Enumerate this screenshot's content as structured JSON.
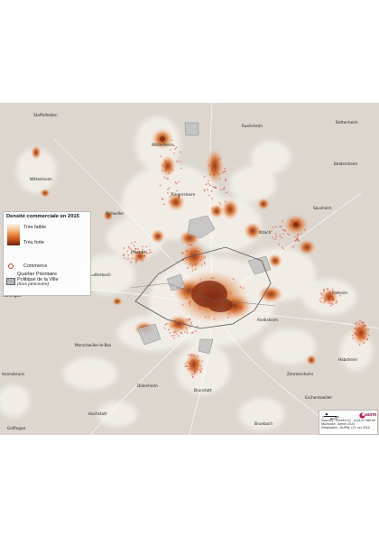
{
  "legend": {
    "title": "Densité commerciale en 2015",
    "low": "Très faible",
    "high": "Très forte",
    "commerce": "Commerce",
    "qpv": "Quartier Prioritaire\nPolitique de la Ville",
    "qpv_note": "(hors péricentre)"
  },
  "places": [
    "Staffelfelden",
    "Wittenheim",
    "Ruelisheim",
    "Battenheim",
    "Baldersheim",
    "Wittelsheim",
    "Kingersheim",
    "Richwiller",
    "Sausheim",
    "Illzach",
    "Pfastatt",
    "Lutterbach",
    "Reiningue",
    "Mulhouse",
    "Rixheim",
    "Riedisheim",
    "Morschwiller-le-Bas",
    "Habsheim",
    "Heimsbrunn",
    "Didenheim",
    "Zimmersheim",
    "Brunstatt",
    "Eschentzwiller",
    "Hochstatt",
    "Bruebach",
    "Galfingue"
  ],
  "credits": {
    "scale_zero": "0",
    "scale_max": "900",
    "scale_unit": "Mètres",
    "logo": "aurm",
    "sources": "Sources : Service IG - m2A et Ville de Mulhouse, Sirene 2015",
    "realisation": "Réalisation : AURM, LH, oct 2016"
  },
  "colors": {
    "background": "#dcd6cf",
    "hot": "#c95a1f",
    "core": "#7a2812",
    "outline": "#555555"
  }
}
